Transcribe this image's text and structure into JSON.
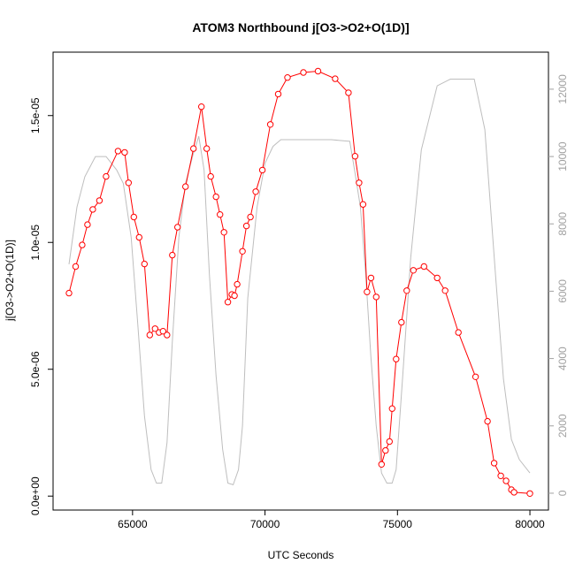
{
  "chart_data": {
    "type": "line",
    "title": "ATOM3 Northbound j[O3->O2+O(1D)]",
    "xlabel": "UTC Seconds",
    "ylabel": "j[O3->O2+O(1D)]",
    "xlim": [
      62000,
      80700
    ],
    "ylim": [
      -5.5e-07,
      1.75e-05
    ],
    "y2lim": [
      -500,
      13100
    ],
    "x_ticks": [
      65000,
      70000,
      75000,
      80000
    ],
    "x_tick_labels": [
      "65000",
      "70000",
      "75000",
      "80000"
    ],
    "y_ticks": [
      0,
      5e-06,
      1e-05,
      1.5e-05
    ],
    "y_tick_labels": [
      "0.0e+00",
      "5.0e-06",
      "1.0e-05",
      "1.5e-05"
    ],
    "y2_ticks": [
      0,
      2000,
      4000,
      6000,
      8000,
      10000,
      12000
    ],
    "y2_tick_labels": [
      "0",
      "2000",
      "4000",
      "6000",
      "8000",
      "10000",
      "12000"
    ],
    "grid": false,
    "colors": {
      "j_series": "#ff0000",
      "altitude_series": "#bebebe",
      "axes": "#000000",
      "y2_axis": "#a0a0a0"
    },
    "series": [
      {
        "axis": "left",
        "style": "line+circles",
        "x": [
          62600,
          62850,
          63100,
          63300,
          63500,
          63750,
          64000,
          64450,
          64700,
          64850,
          65050,
          65250,
          65450,
          65650,
          65850,
          66000,
          66150,
          66300,
          66500,
          66700,
          67000,
          67300,
          67600,
          67800,
          67950,
          68150,
          68300,
          68450,
          68600,
          68750,
          68850,
          68950,
          69150,
          69300,
          69450,
          69650,
          69900,
          70200,
          70500,
          70850,
          71450,
          72000,
          72650,
          73150,
          73400,
          73550,
          73700,
          73850,
          74000,
          74200,
          74400,
          74550,
          74700,
          74800,
          74950,
          75150,
          75350,
          75600,
          76000,
          76500,
          76800,
          77300,
          77950,
          78400,
          78650,
          78900,
          79100,
          79300,
          79400,
          80000
        ],
        "y": [
          8e-06,
          9.05e-06,
          9.9e-06,
          1.07e-05,
          1.13e-05,
          1.165e-05,
          1.26e-05,
          1.36e-05,
          1.355e-05,
          1.235e-05,
          1.1e-05,
          1.02e-05,
          9.15e-06,
          6.35e-06,
          6.6e-06,
          6.45e-06,
          6.5e-06,
          6.35e-06,
          9.5e-06,
          1.06e-05,
          1.22e-05,
          1.37e-05,
          1.535e-05,
          1.37e-05,
          1.26e-05,
          1.18e-05,
          1.11e-05,
          1.04e-05,
          7.65e-06,
          7.95e-06,
          7.9e-06,
          8.35e-06,
          9.65e-06,
          1.065e-05,
          1.1e-05,
          1.2e-05,
          1.285e-05,
          1.465e-05,
          1.585e-05,
          1.65e-05,
          1.67e-05,
          1.675e-05,
          1.645e-05,
          1.59e-05,
          1.34e-05,
          1.235e-05,
          1.15e-05,
          8.05e-06,
          8.6e-06,
          7.85e-06,
          1.25e-06,
          1.8e-06,
          2.15e-06,
          3.45e-06,
          5.4e-06,
          6.85e-06,
          8.1e-06,
          8.9e-06,
          9.05e-06,
          8.6e-06,
          8.1e-06,
          6.45e-06,
          4.7e-06,
          2.95e-06,
          1.3e-06,
          8e-07,
          6e-07,
          2.5e-07,
          1.5e-07,
          1e-07
        ]
      },
      {
        "axis": "right",
        "style": "line",
        "x": [
          62600,
          62900,
          63200,
          63600,
          64000,
          64400,
          64650,
          64950,
          65200,
          65450,
          65700,
          65900,
          66100,
          66300,
          66500,
          66750,
          67000,
          67300,
          67500,
          67700,
          67900,
          68150,
          68400,
          68600,
          68800,
          69000,
          69150,
          69350,
          69700,
          70000,
          70300,
          70600,
          71500,
          72500,
          73200,
          73400,
          73600,
          73800,
          74000,
          74200,
          74400,
          74600,
          74800,
          74950,
          75200,
          75500,
          75900,
          76500,
          77000,
          77900,
          78300,
          78700,
          79000,
          79300,
          79600,
          80000
        ],
        "y": [
          6800,
          8500,
          9400,
          10000,
          10000,
          9600,
          9200,
          7600,
          5000,
          2300,
          700,
          300,
          300,
          1500,
          4500,
          7600,
          9200,
          10100,
          10600,
          9600,
          6500,
          3500,
          1300,
          300,
          250,
          700,
          2000,
          5800,
          8500,
          9800,
          10300,
          10500,
          10500,
          10500,
          10450,
          9500,
          8500,
          6500,
          4000,
          2000,
          600,
          300,
          300,
          700,
          3500,
          7000,
          10200,
          12100,
          12300,
          12300,
          10800,
          6500,
          3400,
          1600,
          1000,
          600
        ]
      }
    ]
  }
}
